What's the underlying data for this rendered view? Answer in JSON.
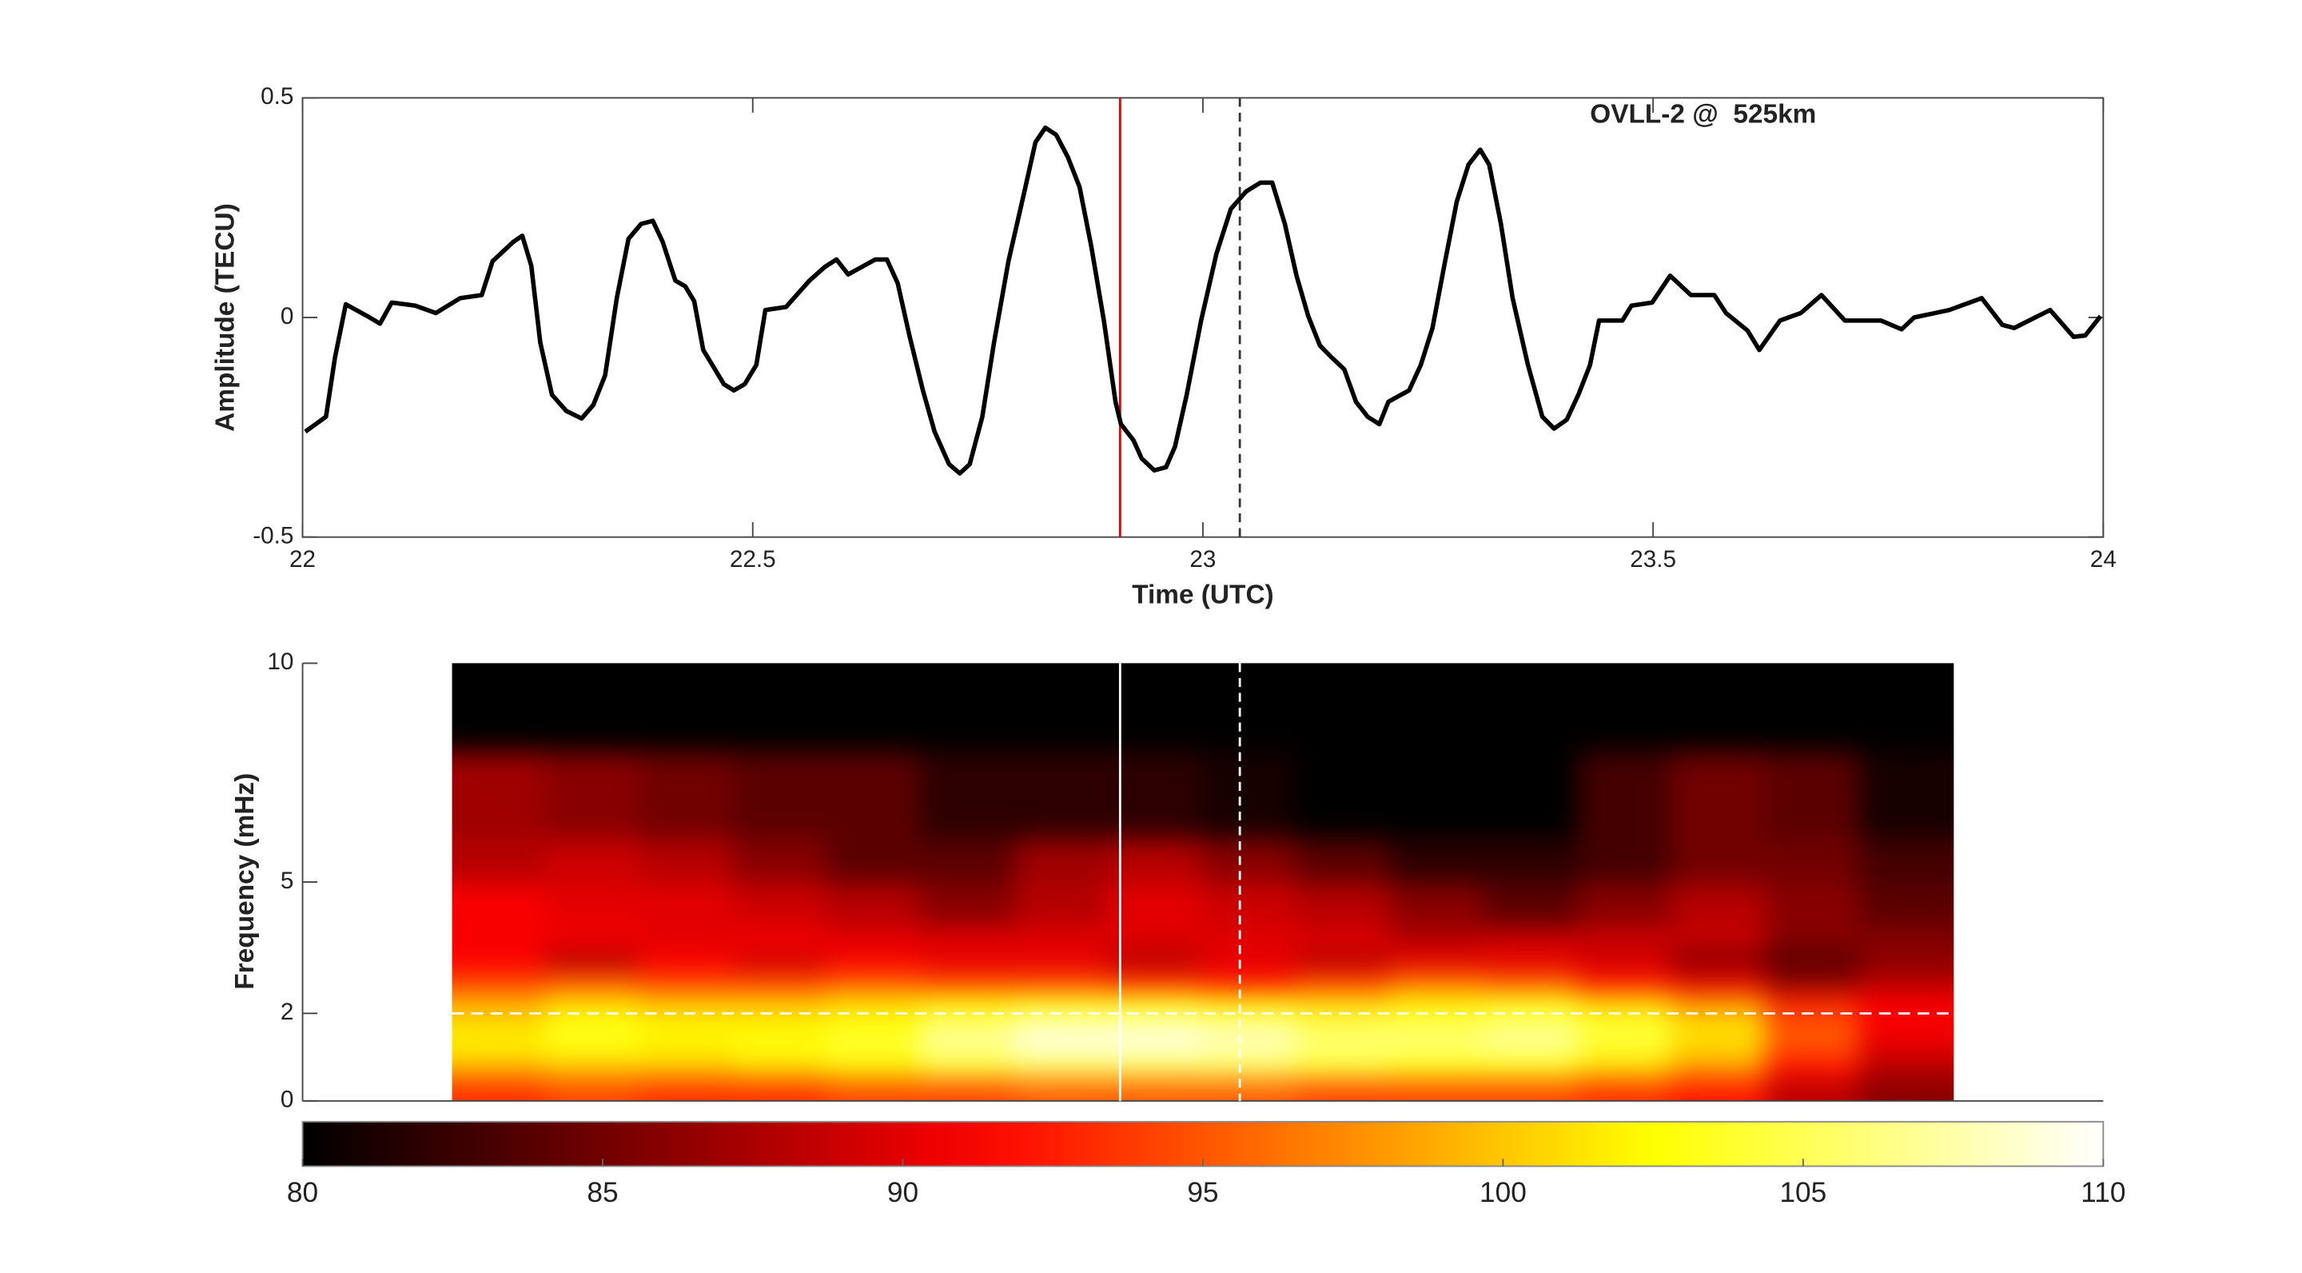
{
  "chart_data": [
    {
      "type": "line",
      "annotation": "OVLL-2 @  525km",
      "xlabel": "Time (UTC)",
      "ylabel": "Amplitude (TECU)",
      "xlim": [
        22,
        24
      ],
      "ylim": [
        -0.5,
        0.5
      ],
      "xticks": [
        22,
        22.5,
        23,
        23.5,
        24
      ],
      "yticks": [
        -0.5,
        0,
        0.5
      ],
      "color": "#000000",
      "x": [
        22.003,
        22.026,
        22.036,
        22.048,
        22.072,
        22.086,
        22.099,
        22.125,
        22.148,
        22.175,
        22.199,
        22.211,
        22.234,
        22.244,
        22.254,
        22.264,
        22.277,
        22.293,
        22.31,
        22.323,
        22.336,
        22.349,
        22.362,
        22.376,
        22.389,
        22.4,
        22.414,
        22.425,
        22.435,
        22.445,
        22.468,
        22.479,
        22.491,
        22.504,
        22.514,
        22.537,
        22.563,
        22.58,
        22.593,
        22.606,
        22.636,
        22.649,
        22.661,
        22.674,
        22.689,
        22.702,
        22.718,
        22.73,
        22.741,
        22.755,
        22.768,
        22.784,
        22.801,
        22.814,
        22.825,
        22.837,
        22.85,
        22.863,
        22.876,
        22.89,
        22.903,
        22.909,
        22.923,
        22.932,
        22.946,
        22.959,
        22.969,
        22.982,
        22.998,
        23.015,
        23.031,
        23.048,
        23.064,
        23.077,
        23.091,
        23.104,
        23.117,
        23.13,
        23.143,
        23.157,
        23.17,
        23.183,
        23.196,
        23.206,
        23.229,
        23.242,
        23.255,
        23.269,
        23.282,
        23.295,
        23.308,
        23.318,
        23.331,
        23.344,
        23.361,
        23.377,
        23.39,
        23.404,
        23.417,
        23.43,
        23.44,
        23.466,
        23.476,
        23.499,
        23.519,
        23.542,
        23.568,
        23.581,
        23.605,
        23.618,
        23.641,
        23.664,
        23.687,
        23.713,
        23.753,
        23.776,
        23.79,
        23.829,
        23.865,
        23.888,
        23.901,
        23.941,
        23.967,
        23.98,
        23.997
      ],
      "values": [
        -0.26,
        -0.226,
        -0.091,
        0.03,
        0.003,
        -0.014,
        0.034,
        0.027,
        0.01,
        0.044,
        0.051,
        0.128,
        0.172,
        0.186,
        0.118,
        -0.057,
        -0.176,
        -0.213,
        -0.23,
        -0.199,
        -0.132,
        0.044,
        0.179,
        0.213,
        0.22,
        0.172,
        0.084,
        0.071,
        0.037,
        -0.074,
        -0.152,
        -0.166,
        -0.152,
        -0.108,
        0.017,
        0.024,
        0.084,
        0.115,
        0.132,
        0.098,
        0.132,
        0.132,
        0.078,
        -0.041,
        -0.166,
        -0.26,
        -0.334,
        -0.355,
        -0.334,
        -0.226,
        -0.057,
        0.128,
        0.28,
        0.399,
        0.432,
        0.416,
        0.365,
        0.297,
        0.162,
        -0.007,
        -0.193,
        -0.243,
        -0.28,
        -0.321,
        -0.348,
        -0.341,
        -0.294,
        -0.176,
        -0.007,
        0.145,
        0.247,
        0.287,
        0.307,
        0.307,
        0.213,
        0.095,
        0.003,
        -0.064,
        -0.091,
        -0.118,
        -0.192,
        -0.226,
        -0.243,
        -0.192,
        -0.166,
        -0.108,
        -0.024,
        0.128,
        0.264,
        0.348,
        0.382,
        0.348,
        0.213,
        0.044,
        -0.108,
        -0.226,
        -0.253,
        -0.233,
        -0.176,
        -0.108,
        -0.007,
        -0.007,
        0.027,
        0.034,
        0.095,
        0.051,
        0.051,
        0.01,
        -0.03,
        -0.074,
        -0.007,
        0.01,
        0.051,
        -0.007,
        -0.007,
        -0.027,
        0.0,
        0.017,
        0.044,
        -0.017,
        -0.024,
        0.017,
        -0.044,
        -0.041,
        0.003
      ],
      "vlines": [
        {
          "x": 22.908,
          "color": "#e00000",
          "dashed": false
        },
        {
          "x": 23.041,
          "color": "#333333",
          "dashed": true
        }
      ]
    },
    {
      "type": "heatmap",
      "ylabel": "Frequency (mHz)",
      "xlim": [
        22,
        24
      ],
      "ylim": [
        0,
        10
      ],
      "yticks": [
        0,
        2,
        5,
        10
      ],
      "colormap": "hot",
      "x_edges": [
        22.166,
        22.27,
        22.375,
        22.479,
        22.583,
        22.687,
        22.792,
        22.896,
        23.0,
        23.104,
        23.209,
        23.313,
        23.417,
        23.521,
        23.626,
        23.73,
        23.834
      ],
      "y_edges": [
        0,
        0.5,
        1,
        1.5,
        2,
        2.5,
        3,
        3.5,
        4,
        5,
        6,
        8,
        10
      ],
      "z": [
        [
          93,
          94,
          93,
          93,
          94,
          94,
          95,
          95,
          95,
          94,
          94,
          94,
          93,
          92,
          88,
          86
        ],
        [
          99,
          100,
          100,
          101,
          102,
          104,
          105,
          105,
          105,
          104,
          103,
          103,
          101,
          98,
          92,
          88
        ],
        [
          102,
          103,
          102,
          103,
          104,
          107,
          109,
          109,
          108,
          106,
          106,
          107,
          104,
          101,
          95,
          90
        ],
        [
          101,
          103,
          102,
          102,
          103,
          106,
          108,
          108,
          107,
          105,
          105,
          106,
          104,
          101,
          95,
          91
        ],
        [
          99,
          101,
          100,
          100,
          101,
          102,
          103,
          103,
          102,
          101,
          102,
          103,
          101,
          98,
          93,
          91
        ],
        [
          94,
          95,
          94,
          94,
          95,
          94,
          94,
          93,
          92,
          94,
          96,
          95,
          92,
          90,
          86,
          88
        ],
        [
          91,
          88,
          91,
          89,
          91,
          90,
          90,
          88,
          90,
          88,
          90,
          90,
          89,
          86,
          84,
          86
        ],
        [
          91,
          91,
          90,
          91,
          90,
          90,
          90,
          90,
          90,
          90,
          88,
          89,
          89,
          89,
          86,
          86
        ],
        [
          91,
          90,
          90,
          89,
          88,
          86,
          88,
          90,
          89,
          88,
          86,
          84,
          86,
          88,
          86,
          84
        ],
        [
          88,
          89,
          88,
          86,
          84,
          84,
          87,
          88,
          86,
          84,
          82,
          82,
          83,
          85,
          85,
          83
        ],
        [
          87,
          86,
          85,
          84,
          84,
          82,
          82,
          82,
          81,
          80,
          80,
          80,
          83,
          85,
          84,
          81
        ],
        [
          80,
          80,
          80,
          80,
          80,
          80,
          80,
          80,
          80,
          80,
          80,
          80,
          80,
          80,
          80,
          80
        ]
      ],
      "vlines": [
        {
          "x": 22.908,
          "color": "#ffffff",
          "dashed": false
        },
        {
          "x": 23.041,
          "color": "#ffffff",
          "dashed": true
        }
      ],
      "hlines": [
        {
          "y": 2,
          "color": "#ffffff",
          "dashed": true
        }
      ],
      "clim": [
        80,
        110
      ],
      "cticks": [
        80,
        85,
        90,
        95,
        100,
        105,
        110
      ]
    }
  ]
}
